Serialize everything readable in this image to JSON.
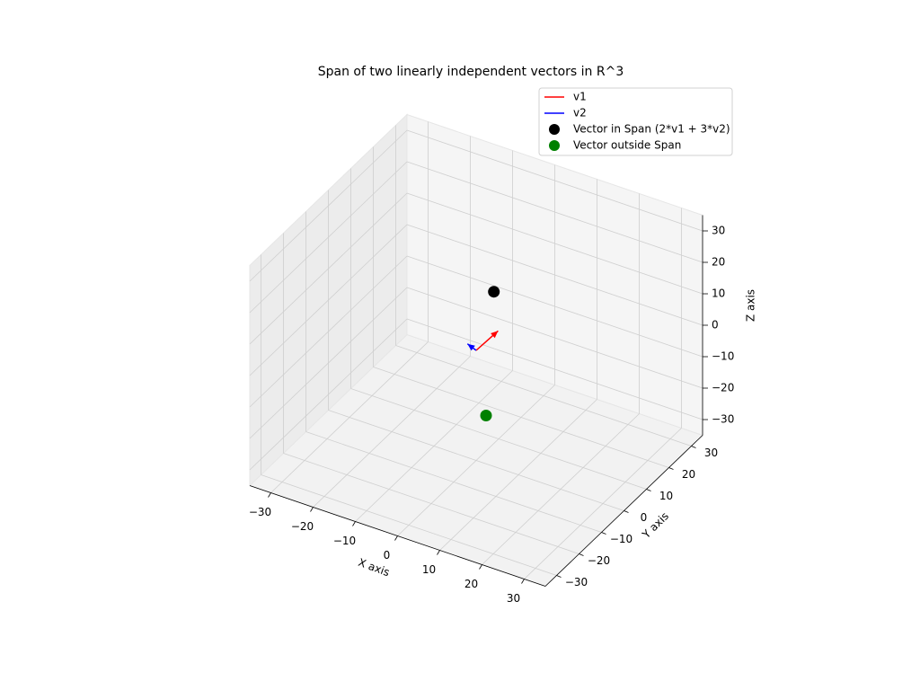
{
  "chart_data": {
    "type": "scatter3d",
    "title": "Span of two linearly independent vectors in R^3",
    "xlabel": "X axis",
    "ylabel": "Y axis",
    "zlabel": "Z axis",
    "xlim": [
      -35,
      35
    ],
    "ylim": [
      -35,
      35
    ],
    "zlim": [
      -35,
      35
    ],
    "xticks": [
      {
        "value": -30,
        "label": "−30"
      },
      {
        "value": -20,
        "label": "−20"
      },
      {
        "value": -10,
        "label": "−10"
      },
      0,
      10,
      20,
      30
    ],
    "yticks": [
      {
        "value": -30,
        "label": "−30"
      },
      {
        "value": -20,
        "label": "−20"
      },
      {
        "value": -10,
        "label": "−10"
      },
      0,
      10,
      20,
      30
    ],
    "zticks": [
      {
        "value": -30,
        "label": "−30"
      },
      {
        "value": -20,
        "label": "−20"
      },
      {
        "value": -10,
        "label": "−10"
      },
      0,
      10,
      20,
      30
    ],
    "grid": true,
    "legend_loc": "upper right",
    "series": [
      {
        "name": "v1",
        "marker": "arrow",
        "color": "#ff0000",
        "x": [
          2
        ],
        "y": [
          6
        ],
        "z": [
          3
        ]
      },
      {
        "name": "v2",
        "marker": "arrow",
        "color": "#0000ff",
        "x": [
          -1
        ],
        "y": [
          -2
        ],
        "z": [
          3
        ]
      },
      {
        "name": "Vector in Span (2*v1 + 3*v2)",
        "marker": "point",
        "color": "#000000",
        "x": [
          1
        ],
        "y": [
          6
        ],
        "z": [
          15
        ]
      },
      {
        "name": "Vector outside Span",
        "marker": "point",
        "color": "#008000",
        "x": [
          5
        ],
        "y": [
          -5
        ],
        "z": [
          -15
        ]
      }
    ]
  }
}
